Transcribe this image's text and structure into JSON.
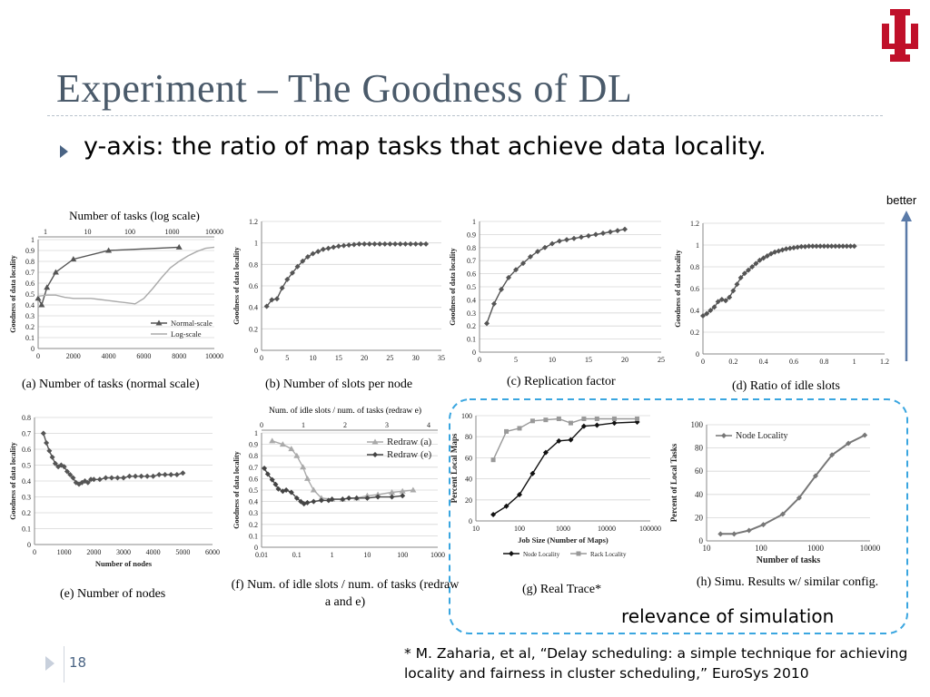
{
  "slide": {
    "title": "Experiment – The Goodness of DL",
    "bullet": "y-axis: the ratio of map tasks that achieve data locality.",
    "better": "better",
    "relevance": "relevance of simulation",
    "reference": "* M. Zaharia, et al, “Delay scheduling: a simple technique for achieving locality and fairness in cluster scheduling,” EuroSys 2010",
    "page_number": "18",
    "colors": {
      "title": "#4a5a6a",
      "logo": "#c0102a",
      "highlight_border": "#3aa6e0",
      "arrow": "#5a7aa8"
    }
  },
  "chart_data": [
    {
      "id": "a",
      "type": "line",
      "caption": "(a) Number of tasks (normal scale)",
      "top_label": "Number of tasks (log scale)",
      "ylabel": "Goodness of data locality",
      "xlim": [
        0,
        10000
      ],
      "xticks": [
        "0",
        "2000",
        "4000",
        "6000",
        "8000",
        "10000"
      ],
      "xtick_values": [
        0,
        2000,
        4000,
        6000,
        8000,
        10000
      ],
      "top_ticks": [
        "1",
        "10",
        "100",
        "1000",
        "10000"
      ],
      "ylim": [
        0,
        1
      ],
      "yticks": [
        "0",
        "0.1",
        "0.2",
        "0.3",
        "0.4",
        "0.5",
        "0.6",
        "0.7",
        "0.8",
        "0.9",
        "1"
      ],
      "legend_position": "bottom-right",
      "series": [
        {
          "name": "Normal-scale",
          "color": "#555555",
          "marker": "triangle",
          "x": [
            0,
            200,
            500,
            1000,
            2000,
            4000,
            8000
          ],
          "y": [
            0.46,
            0.4,
            0.56,
            0.7,
            0.82,
            0.9,
            0.93
          ]
        },
        {
          "name": "Log-scale",
          "color": "#aaaaaa",
          "marker": "none",
          "x": [
            0,
            500,
            1000,
            1500,
            2000,
            2500,
            3000,
            3500,
            4000,
            4500,
            5000,
            5500,
            6000,
            6500,
            7000,
            7500,
            8000,
            8500,
            9000,
            9500,
            10000
          ],
          "y": [
            0.48,
            0.49,
            0.49,
            0.47,
            0.46,
            0.46,
            0.46,
            0.45,
            0.44,
            0.43,
            0.42,
            0.41,
            0.46,
            0.55,
            0.65,
            0.74,
            0.8,
            0.85,
            0.89,
            0.92,
            0.93
          ]
        }
      ]
    },
    {
      "id": "b",
      "type": "line",
      "caption": "(b) Number of slots per node",
      "ylabel": "Goodness of data locality",
      "xlim": [
        0,
        35
      ],
      "xticks": [
        "0",
        "5",
        "10",
        "15",
        "20",
        "25",
        "30",
        "35"
      ],
      "xtick_values": [
        0,
        5,
        10,
        15,
        20,
        25,
        30,
        35
      ],
      "ylim": [
        0,
        1.2
      ],
      "yticks": [
        "0",
        "0.2",
        "0.4",
        "0.6",
        "0.8",
        "1",
        "1.2"
      ],
      "ytick_values": [
        0,
        0.2,
        0.4,
        0.6,
        0.8,
        1.0,
        1.2
      ],
      "series": [
        {
          "name": "",
          "color": "#555555",
          "marker": "diamond",
          "x": [
            1,
            2,
            3,
            4,
            5,
            6,
            7,
            8,
            9,
            10,
            11,
            12,
            13,
            14,
            15,
            16,
            17,
            18,
            19,
            20,
            21,
            22,
            23,
            24,
            25,
            26,
            27,
            28,
            29,
            30,
            31,
            32
          ],
          "y": [
            0.41,
            0.47,
            0.48,
            0.58,
            0.66,
            0.72,
            0.78,
            0.83,
            0.87,
            0.9,
            0.92,
            0.94,
            0.95,
            0.96,
            0.97,
            0.975,
            0.98,
            0.985,
            0.99,
            0.99,
            0.99,
            0.99,
            0.99,
            0.99,
            0.99,
            0.99,
            0.99,
            0.99,
            0.99,
            0.99,
            0.99,
            0.99
          ]
        }
      ]
    },
    {
      "id": "c",
      "type": "line",
      "caption": "(c) Replication factor",
      "ylabel": "Goodness of data locality",
      "xlim": [
        0,
        25
      ],
      "xticks": [
        "0",
        "5",
        "10",
        "15",
        "20",
        "25"
      ],
      "xtick_values": [
        0,
        5,
        10,
        15,
        20,
        25
      ],
      "ylim": [
        0,
        1
      ],
      "yticks": [
        "0",
        "0.1",
        "0.2",
        "0.3",
        "0.4",
        "0.5",
        "0.6",
        "0.7",
        "0.8",
        "0.9",
        "1"
      ],
      "series": [
        {
          "name": "",
          "color": "#555555",
          "marker": "diamond",
          "x": [
            1,
            2,
            3,
            4,
            5,
            6,
            7,
            8,
            9,
            10,
            11,
            12,
            13,
            14,
            15,
            16,
            17,
            18,
            19,
            20
          ],
          "y": [
            0.22,
            0.37,
            0.48,
            0.57,
            0.63,
            0.68,
            0.73,
            0.77,
            0.8,
            0.83,
            0.85,
            0.86,
            0.87,
            0.88,
            0.89,
            0.9,
            0.91,
            0.92,
            0.93,
            0.94
          ]
        }
      ]
    },
    {
      "id": "d",
      "type": "line",
      "caption": "(d) Ratio of idle slots",
      "ylabel": "Goodness of data locality",
      "xlim": [
        0,
        1.2
      ],
      "xticks": [
        "0",
        "0.2",
        "0.4",
        "0.6",
        "0.8",
        "1",
        "1.2"
      ],
      "xtick_values": [
        0,
        0.2,
        0.4,
        0.6,
        0.8,
        1.0,
        1.2
      ],
      "ylim": [
        0,
        1.2
      ],
      "yticks": [
        "0",
        "0.2",
        "0.4",
        "0.6",
        "0.8",
        "1",
        "1.2"
      ],
      "ytick_values": [
        0,
        0.2,
        0.4,
        0.6,
        0.8,
        1.0,
        1.2
      ],
      "series": [
        {
          "name": "",
          "color": "#555555",
          "marker": "diamond",
          "x": [
            0.0,
            0.025,
            0.05,
            0.075,
            0.1,
            0.125,
            0.15,
            0.175,
            0.2,
            0.225,
            0.25,
            0.275,
            0.3,
            0.325,
            0.35,
            0.375,
            0.4,
            0.425,
            0.45,
            0.475,
            0.5,
            0.525,
            0.55,
            0.575,
            0.6,
            0.625,
            0.65,
            0.675,
            0.7,
            0.725,
            0.75,
            0.775,
            0.8,
            0.825,
            0.85,
            0.875,
            0.9,
            0.925,
            0.95,
            0.975,
            1.0
          ],
          "y": [
            0.35,
            0.37,
            0.4,
            0.43,
            0.48,
            0.5,
            0.49,
            0.52,
            0.58,
            0.64,
            0.7,
            0.74,
            0.77,
            0.8,
            0.83,
            0.86,
            0.88,
            0.9,
            0.92,
            0.935,
            0.945,
            0.955,
            0.965,
            0.97,
            0.975,
            0.98,
            0.985,
            0.985,
            0.99,
            0.99,
            0.99,
            0.99,
            0.99,
            0.99,
            0.99,
            0.99,
            0.99,
            0.99,
            0.99,
            0.99,
            0.99
          ]
        }
      ]
    },
    {
      "id": "e",
      "type": "line",
      "caption": "(e) Number of nodes",
      "ylabel": "Goodness of data locality",
      "xlabel": "Number of nodes",
      "xlim": [
        0,
        6000
      ],
      "xticks": [
        "0",
        "1000",
        "2000",
        "3000",
        "4000",
        "5000",
        "6000"
      ],
      "xtick_values": [
        0,
        1000,
        2000,
        3000,
        4000,
        5000,
        6000
      ],
      "ylim": [
        0,
        0.8
      ],
      "yticks": [
        "0",
        "0.1",
        "0.2",
        "0.3",
        "0.4",
        "0.5",
        "0.6",
        "0.7",
        "0.8"
      ],
      "series": [
        {
          "name": "",
          "color": "#555555",
          "marker": "diamond",
          "x": [
            300,
            400,
            500,
            600,
            700,
            800,
            900,
            1000,
            1100,
            1200,
            1300,
            1400,
            1500,
            1600,
            1700,
            1800,
            1900,
            2000,
            2200,
            2400,
            2600,
            2800,
            3000,
            3200,
            3400,
            3600,
            3800,
            4000,
            4200,
            4400,
            4600,
            4800,
            5000
          ],
          "y": [
            0.7,
            0.64,
            0.59,
            0.55,
            0.51,
            0.49,
            0.5,
            0.49,
            0.46,
            0.44,
            0.42,
            0.39,
            0.38,
            0.39,
            0.4,
            0.39,
            0.41,
            0.41,
            0.41,
            0.42,
            0.42,
            0.42,
            0.42,
            0.43,
            0.43,
            0.43,
            0.43,
            0.43,
            0.44,
            0.44,
            0.44,
            0.44,
            0.45
          ]
        }
      ]
    },
    {
      "id": "f",
      "type": "line",
      "caption": "(f) Num. of idle slots / num. of tasks (redraw a and e)",
      "top_label": "Num. of idle slots / num. of tasks (redraw e)",
      "ylabel": "Goodness of data locality",
      "xscale": "log",
      "xlim": [
        0.01,
        1000
      ],
      "xticks": [
        "0.01",
        "0.1",
        "1",
        "10",
        "100",
        "1000"
      ],
      "xtick_values": [
        0.01,
        0.1,
        1,
        10,
        100,
        1000
      ],
      "top_ticks": [
        "0",
        "1",
        "2",
        "3",
        "4"
      ],
      "ylim": [
        0,
        1
      ],
      "yticks": [
        "0",
        "0.1",
        "0.2",
        "0.3",
        "0.4",
        "0.5",
        "0.6",
        "0.7",
        "0.8",
        "0.9",
        "1"
      ],
      "legend_position": "top-right",
      "series": [
        {
          "name": "Redraw (a)",
          "color": "#aaaaaa",
          "marker": "triangle",
          "x": [
            0.02,
            0.04,
            0.07,
            0.1,
            0.15,
            0.2,
            0.3,
            0.5,
            1,
            2,
            5,
            10,
            20,
            50,
            100,
            200
          ],
          "y": [
            0.93,
            0.9,
            0.86,
            0.8,
            0.7,
            0.6,
            0.5,
            0.43,
            0.42,
            0.42,
            0.43,
            0.45,
            0.46,
            0.48,
            0.49,
            0.5
          ]
        },
        {
          "name": "Redraw (e)",
          "color": "#444444",
          "marker": "diamond",
          "x": [
            0.012,
            0.015,
            0.02,
            0.025,
            0.03,
            0.04,
            0.05,
            0.07,
            0.1,
            0.13,
            0.16,
            0.2,
            0.3,
            0.5,
            0.8,
            1,
            2,
            3,
            5,
            10,
            20,
            50,
            100
          ],
          "y": [
            0.69,
            0.64,
            0.59,
            0.55,
            0.51,
            0.49,
            0.5,
            0.48,
            0.43,
            0.4,
            0.38,
            0.39,
            0.4,
            0.41,
            0.41,
            0.42,
            0.42,
            0.43,
            0.43,
            0.43,
            0.44,
            0.44,
            0.45
          ]
        }
      ]
    },
    {
      "id": "g",
      "type": "line",
      "caption": "(g) Real Trace*",
      "ylabel": "Percent Local Maps",
      "xlabel": "Job Size (Number of Maps)",
      "xscale": "log",
      "xlim": [
        10,
        100000
      ],
      "xticks": [
        "10",
        "100",
        "1000",
        "10000",
        "100000"
      ],
      "xtick_values": [
        10,
        100,
        1000,
        10000,
        100000
      ],
      "ylim": [
        0,
        100
      ],
      "yticks": [
        "0",
        "20",
        "40",
        "60",
        "80",
        "100"
      ],
      "ytick_values": [
        0,
        20,
        40,
        60,
        80,
        100
      ],
      "legend_position": "bottom",
      "series": [
        {
          "name": "Node Locality",
          "color": "#111111",
          "marker": "diamond",
          "x": [
            25,
            50,
            100,
            200,
            400,
            800,
            1500,
            3000,
            6000,
            15000,
            50000
          ],
          "y": [
            6,
            14,
            25,
            45,
            65,
            76,
            77,
            90,
            91,
            93,
            94
          ]
        },
        {
          "name": "Rack Locality",
          "color": "#999999",
          "marker": "square",
          "x": [
            25,
            50,
            100,
            200,
            400,
            800,
            1500,
            3000,
            6000,
            15000,
            50000
          ],
          "y": [
            58,
            85,
            88,
            95,
            96,
            97,
            93,
            97,
            97,
            97,
            97
          ]
        }
      ]
    },
    {
      "id": "h",
      "type": "line",
      "caption": "(h) Simu. Results w/ similar config.",
      "ylabel": "Percent of Local Tasks",
      "xlabel": "Number of tasks",
      "xscale": "log",
      "xlim": [
        10,
        10000
      ],
      "xticks": [
        "10",
        "100",
        "1000",
        "10000"
      ],
      "xtick_values": [
        10,
        100,
        1000,
        10000
      ],
      "ylim": [
        0,
        100
      ],
      "yticks": [
        "0",
        "20",
        "40",
        "60",
        "80",
        "100"
      ],
      "ytick_values": [
        0,
        20,
        40,
        60,
        80,
        100
      ],
      "legend_position": "top-left",
      "series": [
        {
          "name": "Node Locality",
          "color": "#777777",
          "marker": "diamond",
          "x": [
            18,
            32,
            60,
            110,
            250,
            500,
            1000,
            2000,
            4000,
            8000
          ],
          "y": [
            6,
            6,
            9,
            14,
            23,
            37,
            56,
            74,
            84,
            91
          ]
        }
      ]
    }
  ]
}
